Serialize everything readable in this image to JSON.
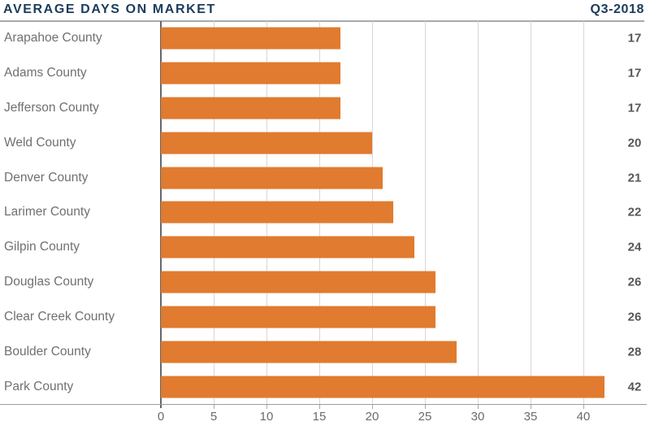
{
  "header": {
    "title": "AVERAGE DAYS ON MARKET",
    "period": "Q3-2018"
  },
  "chart_data": {
    "type": "bar",
    "orientation": "horizontal",
    "title": "AVERAGE DAYS ON MARKET",
    "period_label": "Q3-2018",
    "categories": [
      "Arapahoe County",
      "Adams County",
      "Jefferson County",
      "Weld County",
      "Denver County",
      "Larimer County",
      "Gilpin County",
      "Douglas County",
      "Clear Creek County",
      "Boulder County",
      "Park County"
    ],
    "values": [
      17,
      17,
      17,
      20,
      21,
      22,
      24,
      26,
      26,
      28,
      42
    ],
    "xlabel": "",
    "ylabel": "",
    "x_ticks": [
      0,
      5,
      10,
      15,
      20,
      25,
      30,
      35,
      40
    ],
    "xlim": [
      0,
      46
    ],
    "grid": "vertical-only",
    "legend": "none",
    "value_labels_position": "right-edge",
    "colors": {
      "bar": "#E07B2F",
      "title": "#1B3C5C",
      "category_label": "#6F7073",
      "value_label": "#55575A",
      "gridline": "#D7D7D7",
      "zero_axis": "#66686C",
      "baseline": "#9C9C9C",
      "header_rule": "#A9A9A9",
      "tick_label": "#6A6B6E"
    }
  }
}
